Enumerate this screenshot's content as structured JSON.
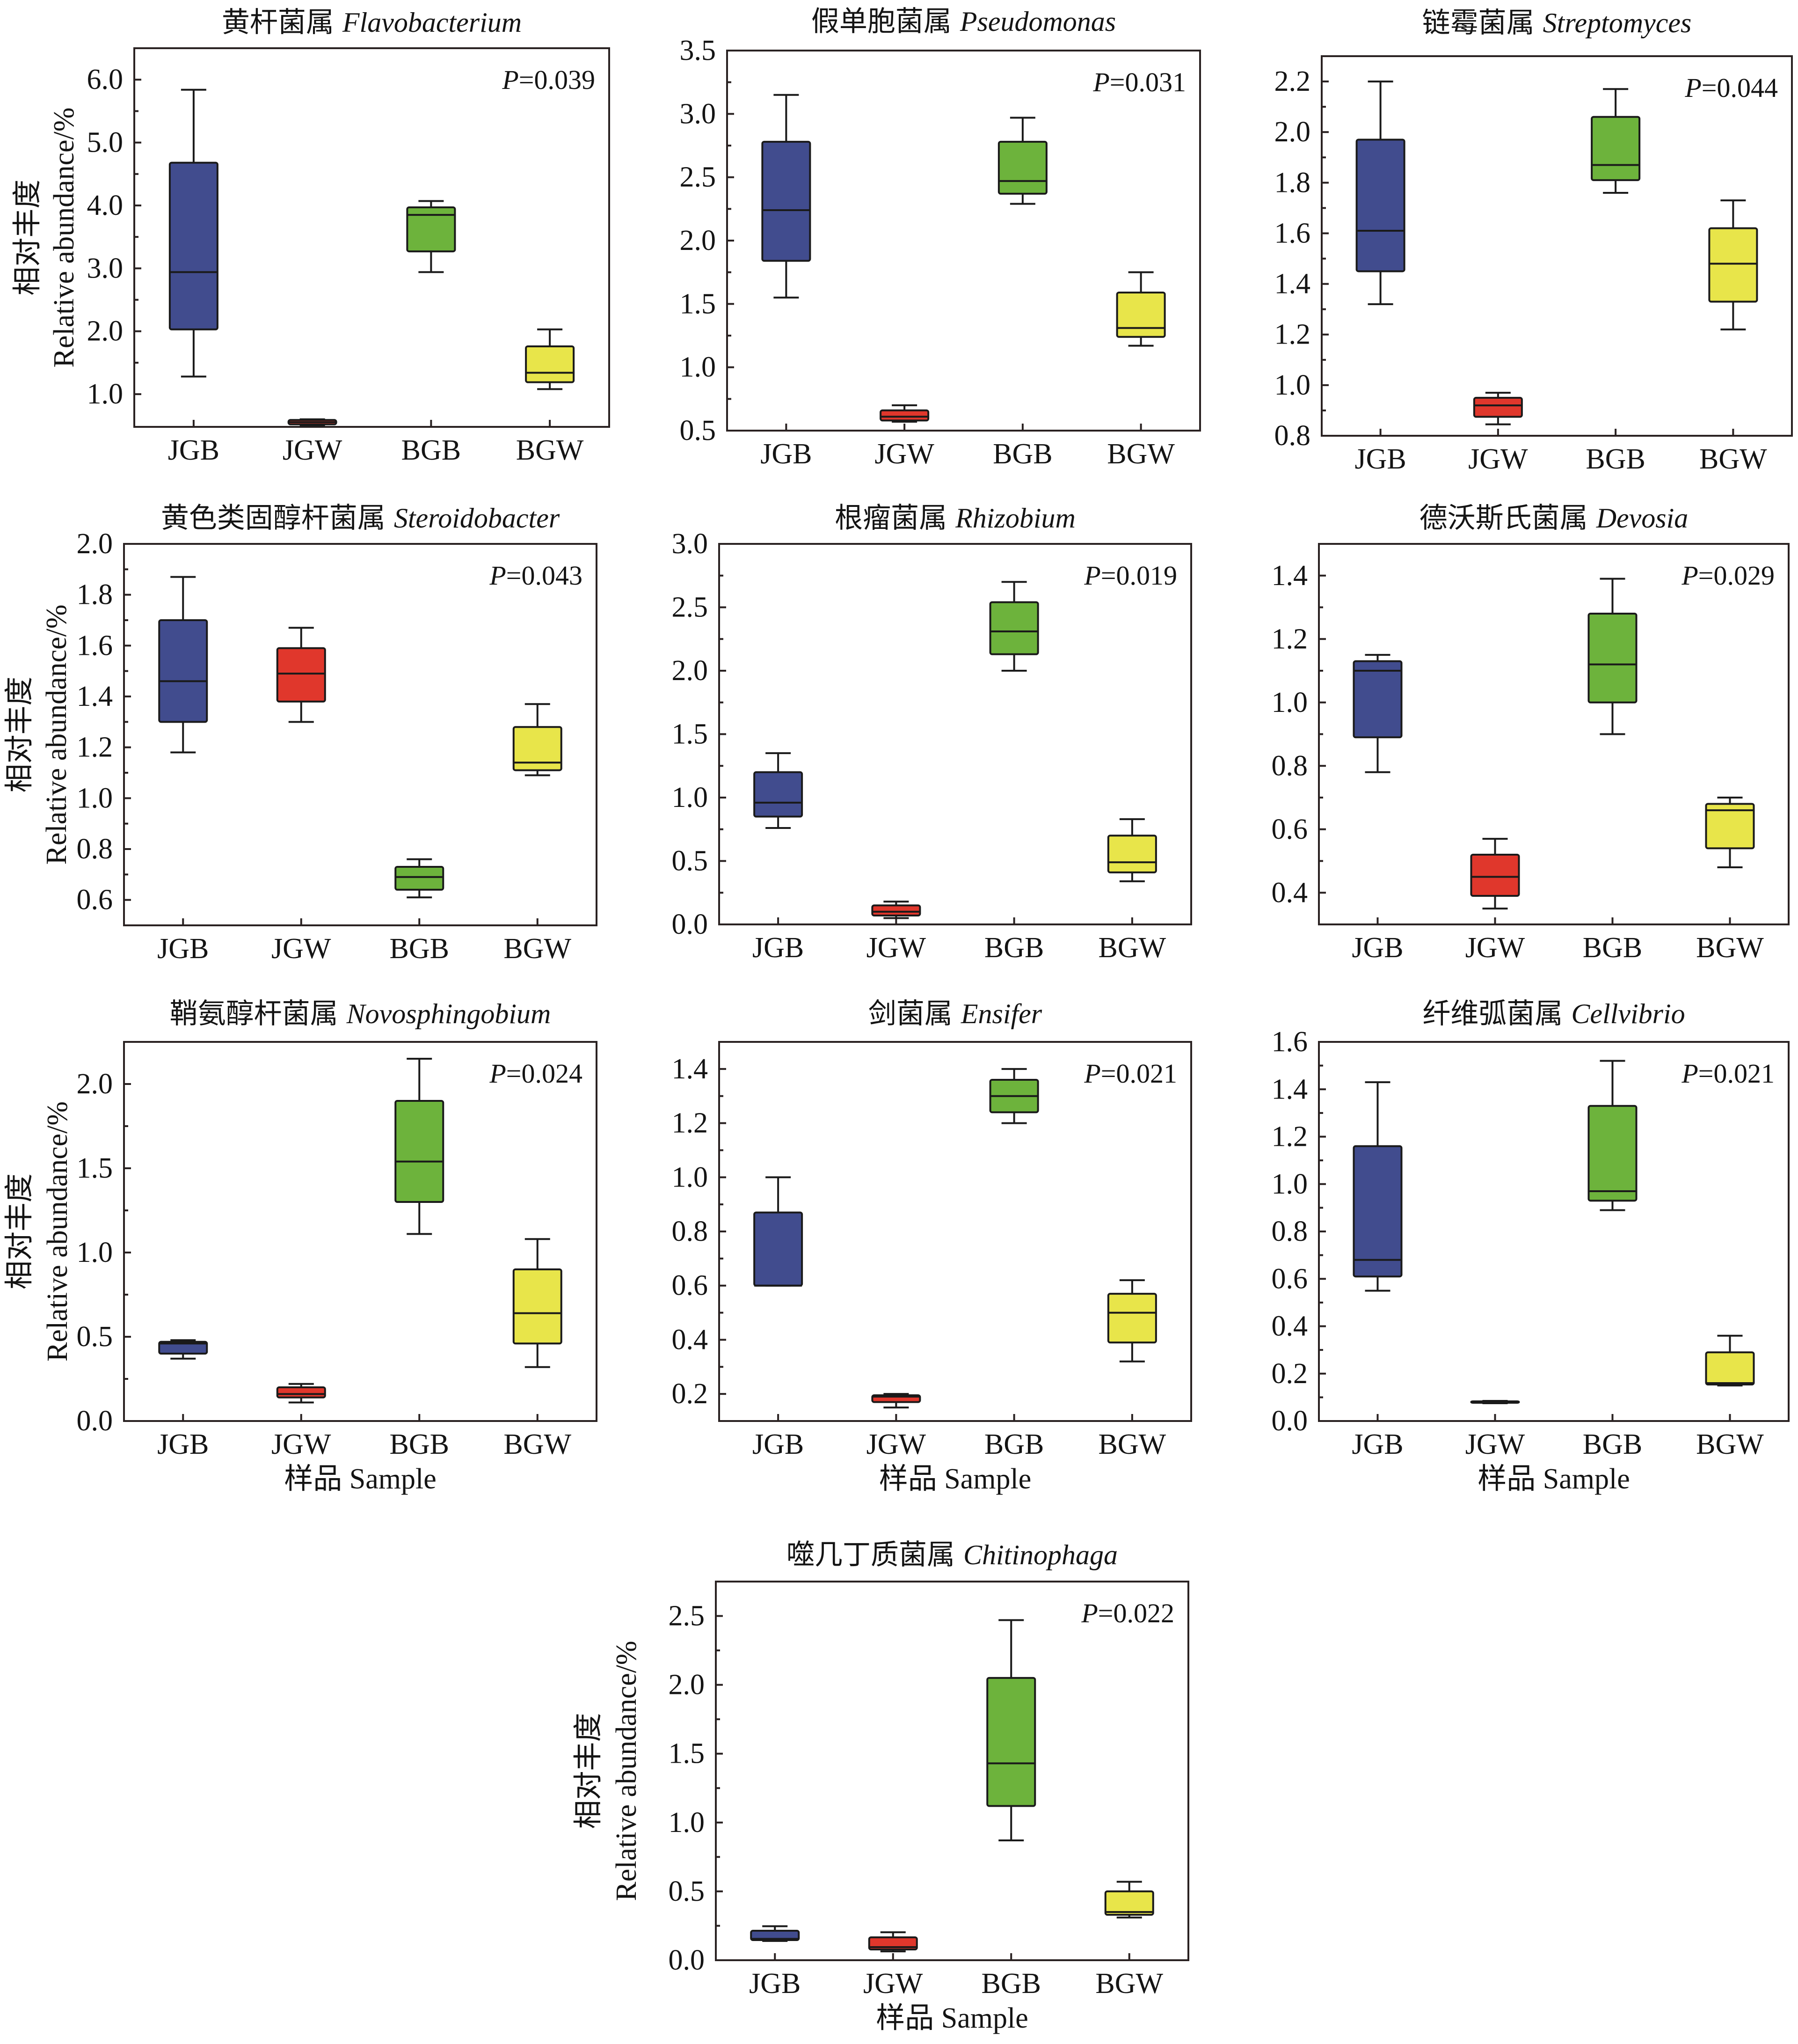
{
  "figure": {
    "group_colors": {
      "JGB": "#414c8e",
      "JGW": "#e0372c",
      "BGB": "#6db33c",
      "BGW": "#e8e54a"
    },
    "frame_color": "#2a2222"
  },
  "chart_data": [
    {
      "type": "box",
      "title_cn": "黄杆菌属",
      "title_genus": "Flavobacterium",
      "p_symbol": "P",
      "p_rest": "=0.039",
      "categories": [
        "JGB",
        "JGW",
        "BGB",
        "BGW"
      ],
      "ylim": [
        0.48,
        6.5
      ],
      "yticks": [
        1.0,
        2.0,
        3.0,
        4.0,
        5.0,
        6.0
      ],
      "ytick_labels": [
        "1.0",
        "2.0",
        "3.0",
        "4.0",
        "5.0",
        "6.0"
      ],
      "yminor_step": 0.5,
      "ylabel_cn": "相对丰度",
      "ylabel_en": "Relative abundance/%",
      "xlabel": "",
      "series": [
        {
          "name": "JGB",
          "color": "#414c8e",
          "whisker_low": 1.28,
          "q1": 2.03,
          "median": 2.94,
          "q3": 4.68,
          "whisker_high": 5.84
        },
        {
          "name": "JGW",
          "color": "#e0372c",
          "whisker_low": 0.5,
          "q1": 0.52,
          "median": 0.555,
          "q3": 0.59,
          "whisker_high": 0.6
        },
        {
          "name": "BGB",
          "color": "#6db33c",
          "whisker_low": 2.94,
          "q1": 3.27,
          "median": 3.85,
          "q3": 3.97,
          "whisker_high": 4.07
        },
        {
          "name": "BGW",
          "color": "#e8e54a",
          "whisker_low": 1.08,
          "q1": 1.19,
          "median": 1.34,
          "q3": 1.76,
          "whisker_high": 2.03
        }
      ]
    },
    {
      "type": "box",
      "title_cn": "假单胞菌属",
      "title_genus": "Pseudomonas",
      "p_symbol": "P",
      "p_rest": "=0.031",
      "categories": [
        "JGB",
        "JGW",
        "BGB",
        "BGW"
      ],
      "ylim": [
        0.5,
        3.5
      ],
      "yticks": [
        0.5,
        1.0,
        1.5,
        2.0,
        2.5,
        3.0,
        3.5
      ],
      "ytick_labels": [
        "0.5",
        "1.0",
        "1.5",
        "2.0",
        "2.5",
        "3.0",
        "3.5"
      ],
      "yminor_step": 0.25,
      "ylabel_cn": "",
      "ylabel_en": "",
      "xlabel": "",
      "series": [
        {
          "name": "JGB",
          "color": "#414c8e",
          "whisker_low": 1.55,
          "q1": 1.84,
          "median": 2.24,
          "q3": 2.78,
          "whisker_high": 3.15
        },
        {
          "name": "JGW",
          "color": "#e0372c",
          "whisker_low": 0.57,
          "q1": 0.58,
          "median": 0.61,
          "q3": 0.66,
          "whisker_high": 0.7
        },
        {
          "name": "BGB",
          "color": "#6db33c",
          "whisker_low": 2.29,
          "q1": 2.37,
          "median": 2.47,
          "q3": 2.78,
          "whisker_high": 2.97
        },
        {
          "name": "BGW",
          "color": "#e8e54a",
          "whisker_low": 1.17,
          "q1": 1.24,
          "median": 1.31,
          "q3": 1.59,
          "whisker_high": 1.75
        }
      ]
    },
    {
      "type": "box",
      "title_cn": "链霉菌属",
      "title_genus": "Streptomyces",
      "p_symbol": "P",
      "p_rest": "=0.044",
      "categories": [
        "JGB",
        "JGW",
        "BGB",
        "BGW"
      ],
      "ylim": [
        0.8,
        2.3
      ],
      "yticks": [
        0.8,
        1.0,
        1.2,
        1.4,
        1.6,
        1.8,
        2.0,
        2.2
      ],
      "ytick_labels": [
        "0.8",
        "1.0",
        "1.2",
        "1.4",
        "1.6",
        "1.8",
        "2.0",
        "2.2"
      ],
      "yminor_step": 0.1,
      "ylabel_cn": "",
      "ylabel_en": "",
      "xlabel": "",
      "series": [
        {
          "name": "JGB",
          "color": "#414c8e",
          "whisker_low": 1.32,
          "q1": 1.45,
          "median": 1.61,
          "q3": 1.97,
          "whisker_high": 2.2
        },
        {
          "name": "JGW",
          "color": "#e0372c",
          "whisker_low": 0.845,
          "q1": 0.875,
          "median": 0.92,
          "q3": 0.95,
          "whisker_high": 0.97
        },
        {
          "name": "BGB",
          "color": "#6db33c",
          "whisker_low": 1.76,
          "q1": 1.81,
          "median": 1.87,
          "q3": 2.06,
          "whisker_high": 2.17
        },
        {
          "name": "BGW",
          "color": "#e8e54a",
          "whisker_low": 1.22,
          "q1": 1.33,
          "median": 1.48,
          "q3": 1.62,
          "whisker_high": 1.73
        }
      ]
    },
    {
      "type": "box",
      "title_cn": "黄色类固醇杆菌属",
      "title_genus": "Steroidobacter",
      "p_symbol": "P",
      "p_rest": "=0.043",
      "categories": [
        "JGB",
        "JGW",
        "BGB",
        "BGW"
      ],
      "ylim": [
        0.5,
        2.0
      ],
      "yticks": [
        0.6,
        0.8,
        1.0,
        1.2,
        1.4,
        1.6,
        1.8,
        2.0
      ],
      "ytick_labels": [
        "0.6",
        "0.8",
        "1.0",
        "1.2",
        "1.4",
        "1.6",
        "1.8",
        "2.0"
      ],
      "yminor_step": 0.1,
      "ylabel_cn": "相对丰度",
      "ylabel_en": "Relative abundance/%",
      "xlabel": "",
      "series": [
        {
          "name": "JGB",
          "color": "#414c8e",
          "whisker_low": 1.18,
          "q1": 1.3,
          "median": 1.46,
          "q3": 1.7,
          "whisker_high": 1.87
        },
        {
          "name": "JGW",
          "color": "#e0372c",
          "whisker_low": 1.3,
          "q1": 1.38,
          "median": 1.49,
          "q3": 1.59,
          "whisker_high": 1.67
        },
        {
          "name": "BGB",
          "color": "#6db33c",
          "whisker_low": 0.61,
          "q1": 0.64,
          "median": 0.69,
          "q3": 0.73,
          "whisker_high": 0.76
        },
        {
          "name": "BGW",
          "color": "#e8e54a",
          "whisker_low": 1.09,
          "q1": 1.11,
          "median": 1.14,
          "q3": 1.28,
          "whisker_high": 1.37
        }
      ]
    },
    {
      "type": "box",
      "title_cn": "根瘤菌属",
      "title_genus": "Rhizobium",
      "p_symbol": "P",
      "p_rest": "=0.019",
      "categories": [
        "JGB",
        "JGW",
        "BGB",
        "BGW"
      ],
      "ylim": [
        0.0,
        3.0
      ],
      "yticks": [
        0.0,
        0.5,
        1.0,
        1.5,
        2.0,
        2.5,
        3.0
      ],
      "ytick_labels": [
        "0.0",
        "0.5",
        "1.0",
        "1.5",
        "2.0",
        "2.5",
        "3.0"
      ],
      "yminor_step": 0.25,
      "ylabel_cn": "",
      "ylabel_en": "",
      "xlabel": "",
      "series": [
        {
          "name": "JGB",
          "color": "#414c8e",
          "whisker_low": 0.76,
          "q1": 0.85,
          "median": 0.96,
          "q3": 1.2,
          "whisker_high": 1.35
        },
        {
          "name": "JGW",
          "color": "#e0372c",
          "whisker_low": 0.05,
          "q1": 0.07,
          "median": 0.1,
          "q3": 0.15,
          "whisker_high": 0.18
        },
        {
          "name": "BGB",
          "color": "#6db33c",
          "whisker_low": 2.0,
          "q1": 2.13,
          "median": 2.31,
          "q3": 2.54,
          "whisker_high": 2.7
        },
        {
          "name": "BGW",
          "color": "#e8e54a",
          "whisker_low": 0.34,
          "q1": 0.41,
          "median": 0.49,
          "q3": 0.7,
          "whisker_high": 0.83
        }
      ]
    },
    {
      "type": "box",
      "title_cn": "德沃斯氏菌属",
      "title_genus": "Devosia",
      "p_symbol": "P",
      "p_rest": "=0.029",
      "categories": [
        "JGB",
        "JGW",
        "BGB",
        "BGW"
      ],
      "ylim": [
        0.3,
        1.5
      ],
      "yticks": [
        0.4,
        0.6,
        0.8,
        1.0,
        1.2,
        1.4
      ],
      "ytick_labels": [
        "0.4",
        "0.6",
        "0.8",
        "1.0",
        "1.2",
        "1.4"
      ],
      "yminor_step": 0.1,
      "ylabel_cn": "",
      "ylabel_en": "",
      "xlabel": "",
      "series": [
        {
          "name": "JGB",
          "color": "#414c8e",
          "whisker_low": 0.78,
          "q1": 0.89,
          "median": 1.1,
          "q3": 1.13,
          "whisker_high": 1.15
        },
        {
          "name": "JGW",
          "color": "#e0372c",
          "whisker_low": 0.35,
          "q1": 0.39,
          "median": 0.45,
          "q3": 0.52,
          "whisker_high": 0.57
        },
        {
          "name": "BGB",
          "color": "#6db33c",
          "whisker_low": 0.9,
          "q1": 1.0,
          "median": 1.12,
          "q3": 1.28,
          "whisker_high": 1.39
        },
        {
          "name": "BGW",
          "color": "#e8e54a",
          "whisker_low": 0.48,
          "q1": 0.54,
          "median": 0.66,
          "q3": 0.68,
          "whisker_high": 0.7
        }
      ]
    },
    {
      "type": "box",
      "title_cn": "鞘氨醇杆菌属",
      "title_genus": "Novosphingobium",
      "p_symbol": "P",
      "p_rest": "=0.024",
      "categories": [
        "JGB",
        "JGW",
        "BGB",
        "BGW"
      ],
      "ylim": [
        0.0,
        2.25
      ],
      "yticks": [
        0.0,
        0.5,
        1.0,
        1.5,
        2.0
      ],
      "ytick_labels": [
        "0.0",
        "0.5",
        "1.0",
        "1.5",
        "2.0"
      ],
      "yminor_step": 0.25,
      "ylabel_cn": "相对丰度",
      "ylabel_en": "Relative abundance/%",
      "xlabel": "样品 Sample",
      "series": [
        {
          "name": "JGB",
          "color": "#414c8e",
          "whisker_low": 0.37,
          "q1": 0.4,
          "median": 0.46,
          "q3": 0.47,
          "whisker_high": 0.48
        },
        {
          "name": "JGW",
          "color": "#e0372c",
          "whisker_low": 0.11,
          "q1": 0.14,
          "median": 0.16,
          "q3": 0.2,
          "whisker_high": 0.22
        },
        {
          "name": "BGB",
          "color": "#6db33c",
          "whisker_low": 1.11,
          "q1": 1.3,
          "median": 1.54,
          "q3": 1.9,
          "whisker_high": 2.15
        },
        {
          "name": "BGW",
          "color": "#e8e54a",
          "whisker_low": 0.32,
          "q1": 0.46,
          "median": 0.64,
          "q3": 0.9,
          "whisker_high": 1.08
        }
      ]
    },
    {
      "type": "box",
      "title_cn": "剑菌属",
      "title_genus": "Ensifer",
      "p_symbol": "P",
      "p_rest": "=0.021",
      "categories": [
        "JGB",
        "JGW",
        "BGB",
        "BGW"
      ],
      "ylim": [
        0.1,
        1.5
      ],
      "yticks": [
        0.2,
        0.4,
        0.6,
        0.8,
        1.0,
        1.2,
        1.4
      ],
      "ytick_labels": [
        "0.2",
        "0.4",
        "0.6",
        "0.8",
        "1.0",
        "1.2",
        "1.4"
      ],
      "yminor_step": 0.1,
      "ylabel_cn": "",
      "ylabel_en": "",
      "xlabel": "样品 Sample",
      "series": [
        {
          "name": "JGB",
          "color": "#414c8e",
          "whisker_low": 0.6,
          "q1": 0.6,
          "median": 0.6,
          "q3": 0.87,
          "whisker_high": 1.0
        },
        {
          "name": "JGW",
          "color": "#e0372c",
          "whisker_low": 0.15,
          "q1": 0.17,
          "median": 0.19,
          "q3": 0.195,
          "whisker_high": 0.2
        },
        {
          "name": "BGB",
          "color": "#6db33c",
          "whisker_low": 1.2,
          "q1": 1.24,
          "median": 1.3,
          "q3": 1.36,
          "whisker_high": 1.4
        },
        {
          "name": "BGW",
          "color": "#e8e54a",
          "whisker_low": 0.32,
          "q1": 0.39,
          "median": 0.5,
          "q3": 0.57,
          "whisker_high": 0.62
        }
      ]
    },
    {
      "type": "box",
      "title_cn": "纤维弧菌属",
      "title_genus": "Cellvibrio",
      "p_symbol": "P",
      "p_rest": "=0.021",
      "categories": [
        "JGB",
        "JGW",
        "BGB",
        "BGW"
      ],
      "ylim": [
        0.0,
        1.6
      ],
      "yticks": [
        0.0,
        0.2,
        0.4,
        0.6,
        0.8,
        1.0,
        1.2,
        1.4,
        1.6
      ],
      "ytick_labels": [
        "0.0",
        "0.2",
        "0.4",
        "0.6",
        "0.8",
        "1.0",
        "1.2",
        "1.4",
        "1.6"
      ],
      "yminor_step": 0.1,
      "ylabel_cn": "",
      "ylabel_en": "",
      "xlabel": "样品 Sample",
      "series": [
        {
          "name": "JGB",
          "color": "#414c8e",
          "whisker_low": 0.55,
          "q1": 0.61,
          "median": 0.68,
          "q3": 1.16,
          "whisker_high": 1.43
        },
        {
          "name": "JGW",
          "color": "#e0372c",
          "whisker_low": 0.075,
          "q1": 0.077,
          "median": 0.08,
          "q3": 0.083,
          "whisker_high": 0.085
        },
        {
          "name": "BGB",
          "color": "#6db33c",
          "whisker_low": 0.89,
          "q1": 0.93,
          "median": 0.97,
          "q3": 1.33,
          "whisker_high": 1.52
        },
        {
          "name": "BGW",
          "color": "#e8e54a",
          "whisker_low": 0.15,
          "q1": 0.154,
          "median": 0.16,
          "q3": 0.29,
          "whisker_high": 0.36
        }
      ]
    },
    {
      "type": "box",
      "title_cn": "噬几丁质菌属",
      "title_genus": "Chitinophaga",
      "p_symbol": "P",
      "p_rest": "=0.022",
      "categories": [
        "JGB",
        "JGW",
        "BGB",
        "BGW"
      ],
      "ylim": [
        0.0,
        2.75
      ],
      "yticks": [
        0.0,
        0.5,
        1.0,
        1.5,
        2.0,
        2.5
      ],
      "ytick_labels": [
        "0.0",
        "0.5",
        "1.0",
        "1.5",
        "2.0",
        "2.5"
      ],
      "yminor_step": 0.25,
      "ylabel_cn": "相对丰度",
      "ylabel_en": "Relative abundance/%",
      "xlabel": "样品 Sample",
      "series": [
        {
          "name": "JGB",
          "color": "#414c8e",
          "whisker_low": 0.14,
          "q1": 0.146,
          "median": 0.155,
          "q3": 0.214,
          "whisker_high": 0.247
        },
        {
          "name": "JGW",
          "color": "#e0372c",
          "whisker_low": 0.064,
          "q1": 0.078,
          "median": 0.095,
          "q3": 0.166,
          "whisker_high": 0.203
        },
        {
          "name": "BGB",
          "color": "#6db33c",
          "whisker_low": 0.87,
          "q1": 1.12,
          "median": 1.43,
          "q3": 2.05,
          "whisker_high": 2.47
        },
        {
          "name": "BGW",
          "color": "#e8e54a",
          "whisker_low": 0.31,
          "q1": 0.33,
          "median": 0.35,
          "q3": 0.5,
          "whisker_high": 0.57
        }
      ]
    }
  ]
}
